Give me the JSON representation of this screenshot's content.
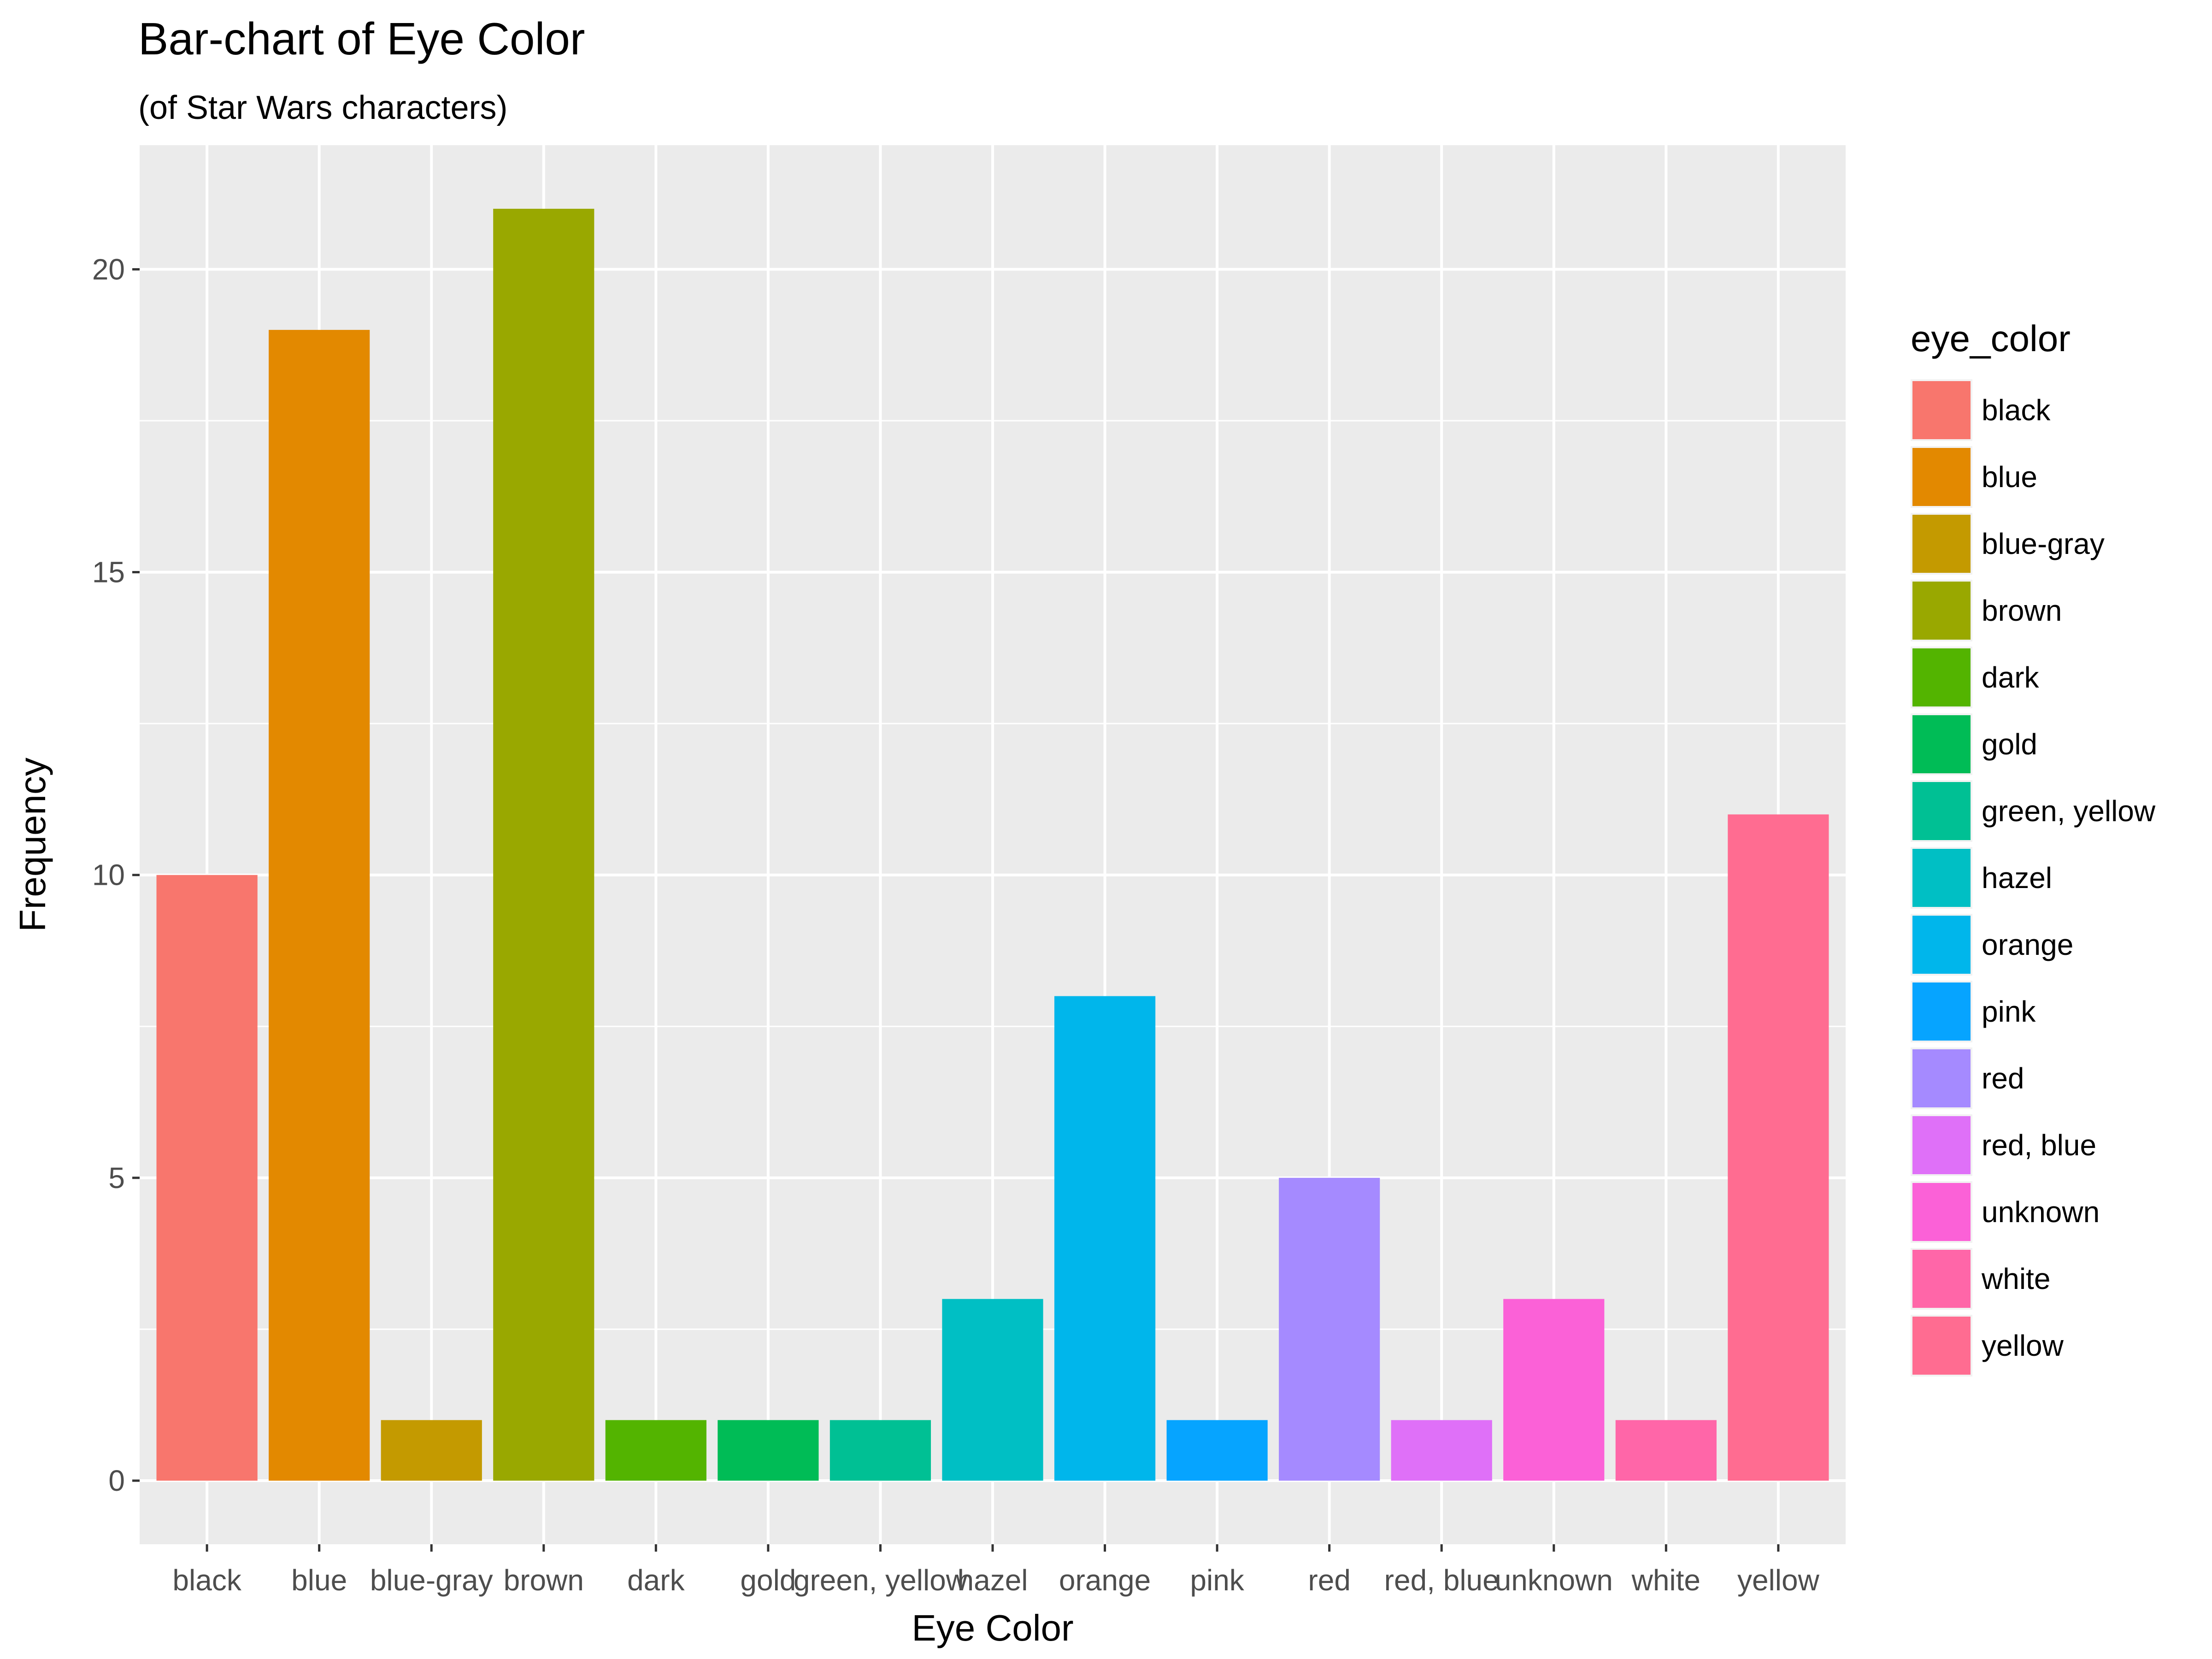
{
  "chart_data": {
    "type": "bar",
    "title": "Bar-chart of Eye Color",
    "subtitle": "(of Star Wars characters)",
    "xlabel": "Eye Color",
    "ylabel": "Frequency",
    "ylim": [
      -1.05,
      22.05
    ],
    "yticks": [
      0,
      5,
      10,
      15,
      20
    ],
    "ytick_labels": [
      "0",
      "5",
      "10",
      "15",
      "20"
    ],
    "grid": true,
    "legend": {
      "title": "eye_color",
      "placement": "right"
    },
    "categories": [
      "black",
      "blue",
      "blue-gray",
      "brown",
      "dark",
      "gold",
      "green, yellow",
      "hazel",
      "orange",
      "pink",
      "red",
      "red, blue",
      "unknown",
      "white",
      "yellow"
    ],
    "values": [
      10,
      19,
      1,
      21,
      1,
      1,
      1,
      3,
      8,
      1,
      5,
      1,
      3,
      1,
      11
    ],
    "colors": [
      "#F8766D",
      "#E38900",
      "#C49A00",
      "#99A800",
      "#53B400",
      "#00BC56",
      "#00C094",
      "#00BFC4",
      "#00B6EB",
      "#06A4FF",
      "#A58AFF",
      "#DF70F8",
      "#FB61D7",
      "#FF66A8",
      "#FF6C91"
    ]
  }
}
